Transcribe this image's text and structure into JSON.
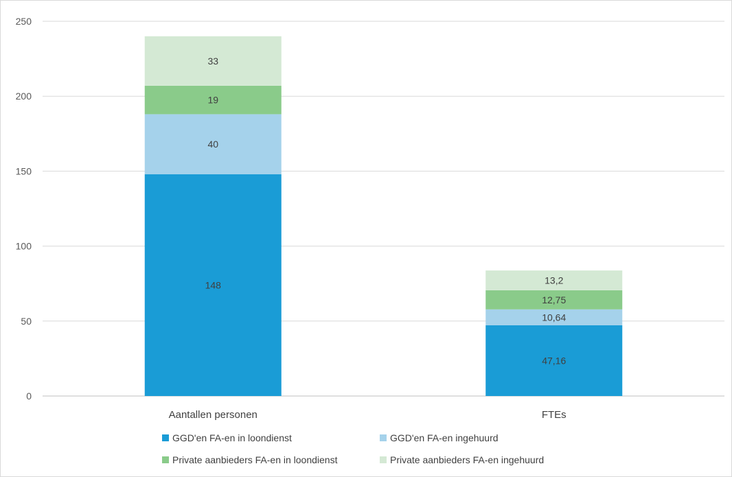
{
  "chart_data": {
    "type": "bar",
    "stacked": true,
    "categories": [
      "Aantallen personen",
      "FTEs"
    ],
    "ylim": [
      0,
      250
    ],
    "yticks": [
      0,
      50,
      100,
      150,
      200,
      250
    ],
    "ytick_labels": [
      "0",
      "50",
      "100",
      "150",
      "200",
      "250"
    ],
    "grid": true,
    "legend_position": "bottom",
    "series": [
      {
        "name": "GGD'en FA-en in loondienst",
        "color": "#1a9cd6",
        "values": [
          148,
          47.16
        ],
        "labels": [
          "148",
          "47,16"
        ]
      },
      {
        "name": "GGD'en FA-en ingehuurd",
        "color": "#a5d2eb",
        "values": [
          40,
          10.64
        ],
        "labels": [
          "40",
          "10,64"
        ]
      },
      {
        "name": "Private aanbieders FA-en in loondienst",
        "color": "#8acb8a",
        "values": [
          19,
          12.75
        ],
        "labels": [
          "19",
          "12,75"
        ]
      },
      {
        "name": "Private aanbieders FA-en ingehuurd",
        "color": "#d4e9d4",
        "values": [
          33,
          13.2
        ],
        "labels": [
          "33",
          "13,2"
        ]
      }
    ]
  }
}
